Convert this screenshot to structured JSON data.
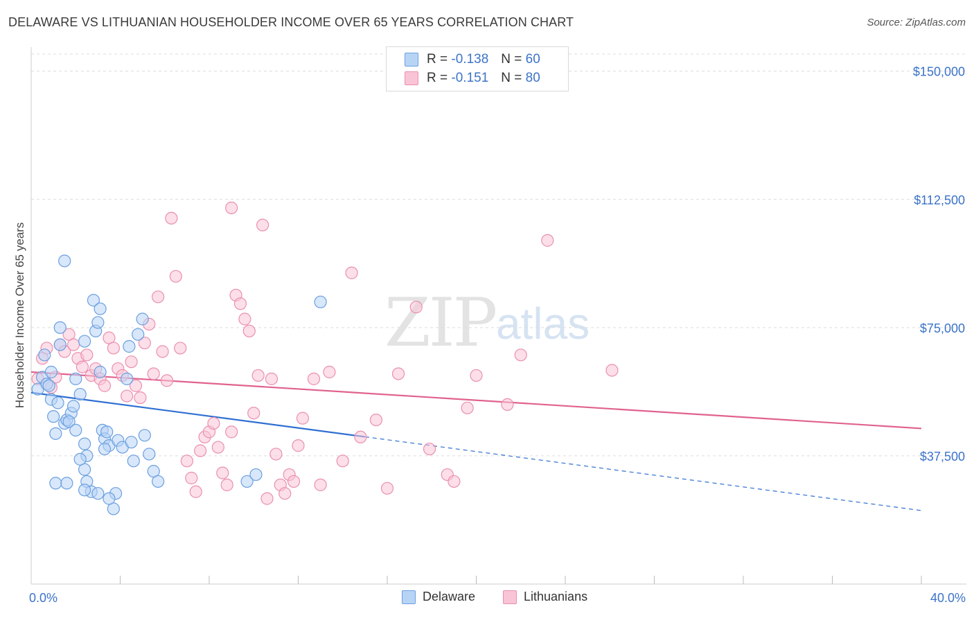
{
  "header": {
    "title": "DELAWARE VS LITHUANIAN HOUSEHOLDER INCOME OVER 65 YEARS CORRELATION CHART",
    "source": "Source: ZipAtlas.com"
  },
  "watermark": {
    "zip": "ZIP",
    "atlas": "atlas"
  },
  "legend": {
    "rows": [
      {
        "r_label": "R =",
        "r_value": "-0.138",
        "n_label": "N =",
        "n_value": "60",
        "color": "#b8d4f5"
      },
      {
        "r_label": "R =",
        "r_value": "-0.151",
        "n_label": "N =",
        "n_value": "80",
        "color": "#f9c4d6"
      }
    ]
  },
  "bottom_legend": {
    "series1": "Delaware",
    "series2": "Lithuanians"
  },
  "colors": {
    "delaware_fill": "#b8d4f5",
    "delaware_stroke": "#6a9fe0",
    "delaware_line": "#2e6fd1",
    "lithuanian_fill": "#f9c4d6",
    "lithuanian_stroke": "#ea8fb0",
    "lithuanian_line": "#e0628f",
    "tick_text": "#3b73c9",
    "grid": "#dcdcdc"
  },
  "chart_data": {
    "type": "scatter",
    "ylabel": "Householder Income Over 65 years",
    "x_tick_labels": [
      "0.0%",
      "40.0%"
    ],
    "y_tick_labels": [
      "$150,000",
      "$112,500",
      "$75,000",
      "$37,500"
    ],
    "y_ticks": [
      150000,
      112500,
      75000,
      37500
    ],
    "xlim": [
      0,
      40
    ],
    "ylim": [
      0,
      155000
    ],
    "grid": true,
    "legend_position": "top-center",
    "series": [
      {
        "name": "Delaware",
        "points": [
          [
            0.3,
            57000
          ],
          [
            0.5,
            60500
          ],
          [
            0.6,
            67000
          ],
          [
            0.7,
            58500
          ],
          [
            0.8,
            58000
          ],
          [
            0.9,
            54000
          ],
          [
            1.0,
            49000
          ],
          [
            1.1,
            44000
          ],
          [
            1.2,
            53000
          ],
          [
            1.3,
            75000
          ],
          [
            1.3,
            70000
          ],
          [
            1.5,
            47000
          ],
          [
            1.6,
            48000
          ],
          [
            1.8,
            50000
          ],
          [
            1.7,
            47500
          ],
          [
            1.5,
            94500
          ],
          [
            2.0,
            60000
          ],
          [
            2.2,
            55500
          ],
          [
            2.0,
            45000
          ],
          [
            2.4,
            41000
          ],
          [
            2.5,
            37500
          ],
          [
            2.4,
            33500
          ],
          [
            2.5,
            30000
          ],
          [
            2.7,
            27000
          ],
          [
            2.8,
            83000
          ],
          [
            2.9,
            74000
          ],
          [
            3.0,
            76500
          ],
          [
            3.1,
            80500
          ],
          [
            3.2,
            45000
          ],
          [
            3.3,
            42500
          ],
          [
            3.4,
            44500
          ],
          [
            3.5,
            40500
          ],
          [
            3.7,
            22000
          ],
          [
            3.8,
            26500
          ],
          [
            3.9,
            42000
          ],
          [
            4.1,
            40000
          ],
          [
            4.4,
            69500
          ],
          [
            4.3,
            60000
          ],
          [
            4.5,
            41500
          ],
          [
            4.6,
            36000
          ],
          [
            4.8,
            73000
          ],
          [
            5.1,
            43500
          ],
          [
            5.0,
            77500
          ],
          [
            5.3,
            38000
          ],
          [
            5.5,
            33000
          ],
          [
            5.7,
            30000
          ],
          [
            3.0,
            26500
          ],
          [
            2.2,
            36500
          ],
          [
            3.5,
            25000
          ],
          [
            2.4,
            27500
          ],
          [
            1.1,
            29500
          ],
          [
            1.6,
            29500
          ],
          [
            3.3,
            39500
          ],
          [
            13.0,
            82500
          ],
          [
            9.7,
            30000
          ],
          [
            10.1,
            32000
          ],
          [
            2.4,
            71000
          ],
          [
            3.1,
            62000
          ],
          [
            0.9,
            62000
          ],
          [
            1.9,
            52000
          ]
        ]
      },
      {
        "name": "Lithuanians",
        "points": [
          [
            0.3,
            60000
          ],
          [
            0.5,
            66000
          ],
          [
            0.7,
            69000
          ],
          [
            0.9,
            57500
          ],
          [
            1.1,
            60500
          ],
          [
            1.3,
            70000
          ],
          [
            1.5,
            68000
          ],
          [
            1.7,
            73000
          ],
          [
            1.9,
            70000
          ],
          [
            2.1,
            66000
          ],
          [
            2.3,
            63500
          ],
          [
            2.5,
            67000
          ],
          [
            2.7,
            61000
          ],
          [
            2.9,
            63000
          ],
          [
            3.1,
            60000
          ],
          [
            3.3,
            58000
          ],
          [
            3.5,
            72000
          ],
          [
            3.7,
            69000
          ],
          [
            3.9,
            63000
          ],
          [
            4.1,
            61000
          ],
          [
            4.3,
            55000
          ],
          [
            4.5,
            65000
          ],
          [
            4.7,
            58000
          ],
          [
            4.9,
            54500
          ],
          [
            5.1,
            70500
          ],
          [
            5.3,
            76000
          ],
          [
            5.5,
            61500
          ],
          [
            5.7,
            84000
          ],
          [
            5.9,
            68000
          ],
          [
            6.1,
            59500
          ],
          [
            6.3,
            107000
          ],
          [
            6.5,
            90000
          ],
          [
            6.7,
            69000
          ],
          [
            7.0,
            36000
          ],
          [
            7.2,
            31000
          ],
          [
            7.4,
            27000
          ],
          [
            7.6,
            39000
          ],
          [
            7.8,
            43000
          ],
          [
            8.0,
            44500
          ],
          [
            8.2,
            47000
          ],
          [
            8.4,
            40000
          ],
          [
            8.6,
            32500
          ],
          [
            8.8,
            29000
          ],
          [
            9.0,
            110000
          ],
          [
            9.2,
            84500
          ],
          [
            9.4,
            82000
          ],
          [
            9.6,
            77500
          ],
          [
            9.8,
            74000
          ],
          [
            10.0,
            50000
          ],
          [
            10.2,
            61000
          ],
          [
            10.4,
            105000
          ],
          [
            10.6,
            25000
          ],
          [
            10.8,
            60000
          ],
          [
            11.0,
            38000
          ],
          [
            11.2,
            29000
          ],
          [
            11.4,
            26500
          ],
          [
            11.6,
            32000
          ],
          [
            11.8,
            30000
          ],
          [
            12.0,
            40500
          ],
          [
            12.2,
            48500
          ],
          [
            12.7,
            60000
          ],
          [
            13.0,
            29000
          ],
          [
            13.4,
            62000
          ],
          [
            14.0,
            36000
          ],
          [
            14.4,
            91000
          ],
          [
            14.8,
            43000
          ],
          [
            15.5,
            48000
          ],
          [
            16.0,
            28000
          ],
          [
            16.5,
            61500
          ],
          [
            17.3,
            81000
          ],
          [
            17.9,
            39500
          ],
          [
            18.7,
            32000
          ],
          [
            19.0,
            30000
          ],
          [
            19.6,
            51500
          ],
          [
            20.0,
            61000
          ],
          [
            21.4,
            52500
          ],
          [
            22.0,
            67000
          ],
          [
            23.2,
            100500
          ],
          [
            26.1,
            62500
          ],
          [
            9.0,
            44500
          ]
        ]
      }
    ],
    "trendlines": [
      {
        "name": "Delaware",
        "solid_from_x": 0.0,
        "solid_to_x": 15.0,
        "dashed_to_x": 40.0,
        "y_at_0": 56000,
        "y_at_40": 21500
      },
      {
        "name": "Lithuanians",
        "from_x": 0.0,
        "to_x": 40.0,
        "y_at_0": 62000,
        "y_at_40": 45500
      }
    ]
  }
}
